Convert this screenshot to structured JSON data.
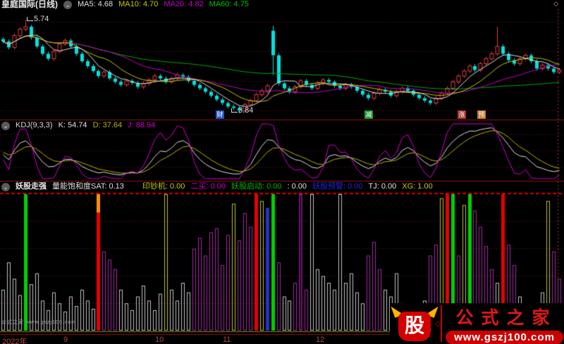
{
  "window": {
    "title": "皇庭国际(日线)"
  },
  "icons": {
    "chevron_down": "⌄",
    "diamond": "◇"
  },
  "colors": {
    "panel_border": "#8f1515",
    "grid": "#7a1f1f",
    "dashed_top": "#d40000",
    "margin_line": "#a03030",
    "candle_up": "#e43c3c",
    "candle_down": "#00e0e0",
    "ma5": "#e0e0e0",
    "ma10": "#c8c800",
    "ma20": "#c800c8",
    "ma60": "#00aa00",
    "kdj_k": "#e0e0e0",
    "kdj_d": "#b8b800",
    "kdj_j": "#d000d0",
    "bar_gray": "#c4c4c4",
    "bar_purple": "#a428a4",
    "bar_yellow": "#c0c030",
    "bar_green": "#00d000",
    "bar_red": "#e60000",
    "bar_orange": "#ff9000",
    "bar_blue": "#2830cc",
    "bar_magenta": "#d828d8",
    "zero_line": "#8a8a00",
    "axis_label": "#b04848"
  },
  "main_chart": {
    "ma_labels": [
      {
        "label": "MA5: 4.68",
        "color": "#e0e0e0"
      },
      {
        "label": "MA10: 4.70",
        "color": "#c8c800"
      },
      {
        "label": "MA20: 4.82",
        "color": "#c800c8"
      },
      {
        "label": "MA60: 4.75",
        "color": "#00c000"
      }
    ],
    "high_label": "5.74",
    "low_label": "3.84",
    "markers": [
      {
        "text": "财",
        "bg": "#2255cc"
      },
      {
        "text": "减",
        "bg": "#1d9a2f"
      },
      {
        "text": "涨",
        "bg": "#a83232"
      },
      {
        "text": "预",
        "bg": "#c27a28"
      }
    ]
  },
  "kdj_panel": {
    "name": "KDJ(9,3,3)",
    "fields": [
      {
        "label": "K: 54.74",
        "color": "#e0e0e0"
      },
      {
        "label": "D: 37.64",
        "color": "#b8b800"
      },
      {
        "label": "J: 88.94",
        "color": "#d000d0"
      }
    ]
  },
  "indicator_panel": {
    "name": "妖股走强",
    "fields": [
      {
        "label": "量能饱和度SAT: 0.13",
        "color": "#e0e0e0"
      },
      {
        "label": "印钞机: 0.00",
        "color": "#c8c800"
      },
      {
        "label": "二买: 0.00",
        "color": "#cc00cc"
      },
      {
        "label": "妖股启动: 0.00",
        "color": "#00b400"
      },
      {
        "label": ": 0.00",
        "color": "#e0e0e0"
      },
      {
        "label": "妖股预警: 0.00",
        "color": "#2222dd"
      },
      {
        "label": "TJ: 0.00",
        "color": "#e0e0e0"
      },
      {
        "label": "XG: 1.00",
        "color": "#c8c800"
      }
    ]
  },
  "x_axis": {
    "labels": [
      "2022年",
      "9",
      "10",
      "11",
      "12"
    ]
  },
  "watermark": "公式之家 www.gszj100.com",
  "logo": {
    "symbol": "股",
    "title": "公式之家",
    "url": "www.gszj100.com"
  },
  "chart_data": {
    "type": "candlestick+kdj+histogram",
    "price_axis": {
      "top_value": 5.7,
      "step": 0.6,
      "high": 5.74,
      "low": 3.84
    },
    "candles": {
      "closes": [
        5.3,
        5.18,
        5.42,
        5.55,
        5.6,
        5.38,
        5.2,
        5.05,
        4.95,
        5.1,
        5.25,
        5.32,
        5.2,
        5.05,
        4.9,
        4.8,
        4.7,
        4.6,
        4.68,
        4.55,
        4.48,
        4.42,
        4.5,
        4.46,
        4.38,
        4.45,
        4.52,
        4.6,
        4.55,
        4.48,
        4.55,
        4.62,
        4.58,
        4.5,
        4.42,
        4.35,
        4.28,
        4.2,
        4.12,
        4.05,
        3.98,
        3.95,
        3.9,
        4.02,
        4.1,
        4.22,
        4.3,
        4.4,
        5.02,
        4.45,
        4.35,
        4.28,
        4.38,
        4.5,
        4.42,
        4.35,
        4.45,
        4.52,
        4.48,
        4.4,
        4.35,
        4.42,
        4.38,
        4.3,
        4.22,
        4.15,
        4.25,
        4.32,
        4.28,
        4.2,
        4.28,
        4.35,
        4.3,
        4.22,
        4.15,
        4.1,
        4.05,
        4.15,
        4.25,
        4.35,
        4.48,
        4.6,
        4.7,
        4.8,
        4.72,
        4.85,
        4.95,
        5.05,
        5.2,
        5.05,
        4.92,
        4.85,
        4.95,
        5.02,
        4.9,
        4.75,
        4.82,
        4.75,
        4.68,
        4.72
      ],
      "special": {
        "4": {
          "h": 5.74
        },
        "42": {
          "l": 3.84
        },
        "48": {
          "o": 5.52,
          "h": 5.62,
          "l": 4.62
        },
        "88": {
          "h": 5.6
        }
      }
    },
    "histogram": {
      "bars": [
        [
          0.3,
          "w"
        ],
        [
          0.5,
          "w"
        ],
        [
          0.38,
          "w"
        ],
        [
          0.26,
          "w"
        ],
        [
          1.0,
          "g"
        ],
        [
          0.34,
          "w"
        ],
        [
          0.42,
          "w"
        ],
        [
          0.22,
          "w"
        ],
        [
          0.15,
          "w"
        ],
        [
          0.28,
          "w"
        ],
        [
          0.2,
          "w"
        ],
        [
          0.14,
          "w"
        ],
        [
          0.25,
          "w"
        ],
        [
          0.18,
          "w"
        ],
        [
          0.3,
          "w"
        ],
        [
          0.22,
          "w"
        ],
        [
          0.16,
          "w"
        ],
        [
          1.0,
          "o"
        ],
        [
          0.58,
          "p"
        ],
        [
          0.52,
          "p"
        ],
        [
          0.45,
          "p"
        ],
        [
          0.3,
          "w"
        ],
        [
          0.2,
          "w"
        ],
        [
          0.15,
          "w"
        ],
        [
          0.25,
          "w"
        ],
        [
          0.33,
          "w"
        ],
        [
          0.22,
          "w"
        ],
        [
          0.15,
          "w"
        ],
        [
          0.27,
          "w"
        ],
        [
          1.0,
          "y"
        ],
        [
          0.3,
          "w"
        ],
        [
          0.22,
          "w"
        ],
        [
          0.35,
          "w"
        ],
        [
          0.28,
          "w"
        ],
        [
          0.6,
          "p"
        ],
        [
          0.68,
          "p"
        ],
        [
          0.55,
          "p"
        ],
        [
          0.72,
          "p"
        ],
        [
          0.75,
          "p"
        ],
        [
          0.48,
          "p"
        ],
        [
          0.7,
          "p"
        ],
        [
          0.93,
          "y"
        ],
        [
          0.66,
          "p"
        ],
        [
          0.86,
          "p"
        ],
        [
          0.76,
          "p"
        ],
        [
          1.0,
          "r"
        ],
        [
          0.95,
          "y"
        ],
        [
          0.9,
          "b"
        ],
        [
          1.0,
          "g"
        ],
        [
          0.5,
          "p"
        ],
        [
          0.25,
          "w"
        ],
        [
          0.22,
          "w"
        ],
        [
          0.35,
          "p"
        ],
        [
          1.0,
          "m"
        ],
        [
          0.3,
          "p"
        ],
        [
          1.0,
          "w"
        ],
        [
          0.45,
          "w"
        ],
        [
          0.4,
          "w"
        ],
        [
          0.35,
          "w"
        ],
        [
          0.3,
          "w"
        ],
        [
          1.0,
          "w"
        ],
        [
          0.35,
          "w"
        ],
        [
          0.42,
          "w"
        ],
        [
          0.28,
          "w"
        ],
        [
          0.2,
          "w"
        ],
        [
          0.55,
          "p"
        ],
        [
          0.65,
          "p"
        ],
        [
          0.45,
          "p"
        ],
        [
          0.3,
          "w"
        ],
        [
          0.25,
          "w"
        ],
        [
          0.42,
          "w"
        ],
        [
          0.2,
          "w"
        ],
        [
          0.12,
          "w"
        ],
        [
          0.15,
          "w"
        ],
        [
          0.18,
          "w"
        ],
        [
          0.22,
          "w"
        ],
        [
          0.55,
          "p"
        ],
        [
          0.63,
          "p"
        ],
        [
          0.97,
          "y"
        ],
        [
          1.0,
          "r"
        ],
        [
          1.0,
          "g"
        ],
        [
          0.55,
          "p"
        ],
        [
          0.92,
          "y"
        ],
        [
          1.0,
          "g"
        ],
        [
          0.88,
          "p"
        ],
        [
          0.76,
          "p"
        ],
        [
          0.62,
          "p"
        ],
        [
          0.45,
          "p"
        ],
        [
          0.35,
          "w"
        ],
        [
          1.0,
          "r"
        ],
        [
          0.63,
          "p"
        ],
        [
          0.48,
          "p"
        ],
        [
          0.25,
          "w"
        ],
        [
          0.18,
          "w"
        ],
        [
          0.15,
          "w"
        ],
        [
          0.2,
          "w"
        ],
        [
          0.28,
          "w"
        ],
        [
          0.95,
          "y"
        ],
        [
          0.58,
          "p"
        ],
        [
          0.38,
          "p"
        ]
      ]
    }
  }
}
